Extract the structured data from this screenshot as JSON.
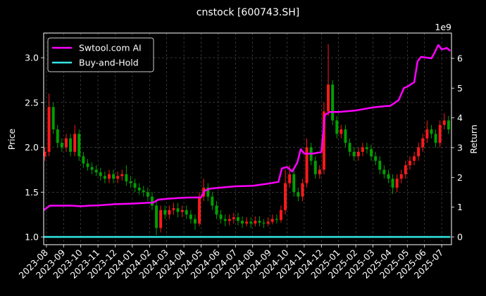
{
  "chart_data": {
    "type": "candlestick",
    "title": "cnstock [600743.SH]",
    "ylabel": "Price",
    "y2label": "Return",
    "y2_offset_label": "1e9",
    "up_color": "#ff1a1a",
    "down_color": "#00a000",
    "x": [
      -0.1,
      0.15,
      0.4,
      0.65,
      0.9,
      1.15,
      1.4,
      1.65,
      1.9,
      2.15,
      2.4,
      2.65,
      2.9,
      3.15,
      3.4,
      3.65,
      3.9,
      4.15,
      4.4,
      4.65,
      4.9,
      5.15,
      5.4,
      5.65,
      5.9,
      6.15,
      6.4,
      6.65,
      6.9,
      7.15,
      7.4,
      7.65,
      7.9,
      8.15,
      8.4,
      8.65,
      8.9,
      9.15,
      9.4,
      9.65,
      9.9,
      10.15,
      10.4,
      10.65,
      10.9,
      11.15,
      11.4,
      11.65,
      11.9,
      12.15,
      12.4,
      12.65,
      12.9,
      13.15,
      13.4,
      13.65,
      13.9,
      14.15,
      14.4,
      14.65,
      14.9,
      15.15,
      15.4,
      15.65,
      15.9,
      16.15,
      16.4,
      16.65,
      16.9,
      17.15,
      17.4,
      17.65,
      17.9,
      18.15,
      18.4,
      18.65,
      18.9,
      19.15,
      19.4,
      19.65,
      19.9,
      20.15,
      20.4,
      20.65,
      20.9,
      21.15,
      21.4,
      21.65,
      21.9,
      22.15,
      22.4,
      22.65,
      22.9,
      23.15,
      23.4
    ],
    "open": [
      1.9,
      1.95,
      2.45,
      2.2,
      2.05,
      2.0,
      2.1,
      1.95,
      2.15,
      1.9,
      1.82,
      1.78,
      1.75,
      1.72,
      1.68,
      1.65,
      1.7,
      1.65,
      1.68,
      1.7,
      1.62,
      1.6,
      1.55,
      1.52,
      1.5,
      1.45,
      1.35,
      1.1,
      1.3,
      1.25,
      1.3,
      1.32,
      1.28,
      1.3,
      1.25,
      1.2,
      1.15,
      1.45,
      1.55,
      1.45,
      1.35,
      1.25,
      1.2,
      1.18,
      1.2,
      1.22,
      1.18,
      1.15,
      1.17,
      1.15,
      1.18,
      1.16,
      1.15,
      1.17,
      1.2,
      1.19,
      1.3,
      1.6,
      1.7,
      1.5,
      1.45,
      1.6,
      2.0,
      1.85,
      1.7,
      1.75,
      2.4,
      2.7,
      2.3,
      2.15,
      2.2,
      2.05,
      1.95,
      1.9,
      1.95,
      2.0,
      1.98,
      1.9,
      1.85,
      1.75,
      1.7,
      1.65,
      1.55,
      1.65,
      1.7,
      1.8,
      1.85,
      1.9,
      2.0,
      2.1,
      2.2,
      2.15,
      2.05,
      2.25,
      2.3
    ],
    "high": [
      2.0,
      2.6,
      2.5,
      2.25,
      2.1,
      2.15,
      2.15,
      2.25,
      2.2,
      1.95,
      1.87,
      1.83,
      1.8,
      1.77,
      1.73,
      1.75,
      1.75,
      1.73,
      1.75,
      1.8,
      1.68,
      1.65,
      1.6,
      1.57,
      1.55,
      1.5,
      1.4,
      1.35,
      1.35,
      1.35,
      1.38,
      1.38,
      1.35,
      1.35,
      1.3,
      1.25,
      1.5,
      1.65,
      1.6,
      1.5,
      1.4,
      1.3,
      1.25,
      1.25,
      1.27,
      1.27,
      1.23,
      1.22,
      1.22,
      1.23,
      1.23,
      1.2,
      1.22,
      1.25,
      1.25,
      1.35,
      1.75,
      1.8,
      1.75,
      1.55,
      1.65,
      2.1,
      2.05,
      1.9,
      1.8,
      2.5,
      3.15,
      2.75,
      2.35,
      2.25,
      2.25,
      2.1,
      2.0,
      2.0,
      2.05,
      2.05,
      2.03,
      1.95,
      1.9,
      1.8,
      1.75,
      1.7,
      1.7,
      1.75,
      1.85,
      1.9,
      1.95,
      2.05,
      2.15,
      2.3,
      2.25,
      2.2,
      2.3,
      2.38,
      2.35
    ],
    "low": [
      1.85,
      1.9,
      2.15,
      2.0,
      1.95,
      1.95,
      1.9,
      1.9,
      1.85,
      1.77,
      1.74,
      1.7,
      1.68,
      1.63,
      1.6,
      1.6,
      1.6,
      1.6,
      1.63,
      1.57,
      1.55,
      1.5,
      1.47,
      1.45,
      1.4,
      1.3,
      1.02,
      1.05,
      1.2,
      1.2,
      1.25,
      1.22,
      1.22,
      1.2,
      1.15,
      1.08,
      1.12,
      1.4,
      1.4,
      1.3,
      1.2,
      1.15,
      1.12,
      1.13,
      1.15,
      1.13,
      1.1,
      1.12,
      1.1,
      1.12,
      1.12,
      1.1,
      1.12,
      1.14,
      1.15,
      1.16,
      1.25,
      1.55,
      1.45,
      1.4,
      1.4,
      1.55,
      1.8,
      1.65,
      1.65,
      1.7,
      2.35,
      2.25,
      2.1,
      2.1,
      2.0,
      1.9,
      1.85,
      1.85,
      1.9,
      1.93,
      1.85,
      1.8,
      1.7,
      1.65,
      1.6,
      1.48,
      1.5,
      1.6,
      1.65,
      1.75,
      1.8,
      1.85,
      1.95,
      2.05,
      2.1,
      2.0,
      2.0,
      2.2,
      2.15
    ],
    "close": [
      1.95,
      2.45,
      2.2,
      2.05,
      2.0,
      2.1,
      1.95,
      2.15,
      1.9,
      1.82,
      1.78,
      1.75,
      1.72,
      1.68,
      1.65,
      1.7,
      1.65,
      1.68,
      1.7,
      1.62,
      1.6,
      1.55,
      1.52,
      1.5,
      1.45,
      1.35,
      1.1,
      1.3,
      1.25,
      1.3,
      1.32,
      1.28,
      1.3,
      1.25,
      1.2,
      1.15,
      1.45,
      1.55,
      1.45,
      1.35,
      1.25,
      1.2,
      1.18,
      1.2,
      1.22,
      1.18,
      1.15,
      1.17,
      1.15,
      1.18,
      1.16,
      1.15,
      1.17,
      1.2,
      1.19,
      1.3,
      1.6,
      1.7,
      1.5,
      1.45,
      1.6,
      2.0,
      1.85,
      1.7,
      1.75,
      2.4,
      2.7,
      2.3,
      2.15,
      2.2,
      2.05,
      1.95,
      1.9,
      1.95,
      2.0,
      1.98,
      1.9,
      1.85,
      1.75,
      1.7,
      1.65,
      1.55,
      1.65,
      1.7,
      1.8,
      1.85,
      1.9,
      2.0,
      2.1,
      2.2,
      2.15,
      2.05,
      2.25,
      2.3,
      2.2
    ],
    "series": [
      {
        "name": "Swtool.com AI",
        "color": "#ff00ff",
        "axis": "y2",
        "x": [
          -0.15,
          0.2,
          1,
          1.5,
          2,
          2.5,
          3,
          4,
          5,
          6,
          6.2,
          6.5,
          7,
          7.5,
          8,
          9,
          9.2,
          9.5,
          10,
          11,
          12,
          13,
          13.5,
          13.7,
          14,
          14.3,
          14.6,
          14.8,
          15,
          15.5,
          16,
          16.2,
          16.5,
          17,
          18,
          19,
          19.8,
          20,
          20.5,
          20.8,
          21,
          21.4,
          21.6,
          21.8,
          22.4,
          22.6,
          22.8,
          23,
          23.3,
          23.5
        ],
        "values": [
          0.9,
          1.05,
          1.05,
          1.05,
          1.03,
          1.05,
          1.06,
          1.1,
          1.12,
          1.15,
          1.15,
          1.25,
          1.28,
          1.3,
          1.32,
          1.33,
          1.55,
          1.62,
          1.65,
          1.7,
          1.72,
          1.8,
          1.85,
          2.3,
          2.35,
          2.2,
          2.5,
          2.95,
          2.8,
          2.8,
          2.85,
          4.1,
          4.2,
          4.2,
          4.25,
          4.35,
          4.4,
          4.4,
          4.6,
          5.0,
          5.05,
          5.2,
          5.9,
          6.05,
          6.0,
          6.2,
          6.45,
          6.3,
          6.35,
          6.25
        ]
      },
      {
        "name": "Buy-and-Hold",
        "color": "#33e6e6",
        "axis": "y2",
        "x": [
          -0.15,
          23.5
        ],
        "values": [
          0,
          0
        ]
      }
    ],
    "xlim": [
      -0.16,
      23.57
    ],
    "xticks": [
      {
        "value": 0,
        "label": "2023-08"
      },
      {
        "value": 1,
        "label": "2023-09"
      },
      {
        "value": 2,
        "label": "2023-10"
      },
      {
        "value": 3,
        "label": "2023-11"
      },
      {
        "value": 4,
        "label": "2023-12"
      },
      {
        "value": 5,
        "label": "2024-01"
      },
      {
        "value": 6,
        "label": "2024-02"
      },
      {
        "value": 7,
        "label": "2024-03"
      },
      {
        "value": 8,
        "label": "2024-04"
      },
      {
        "value": 9,
        "label": "2024-05"
      },
      {
        "value": 10,
        "label": "2024-06"
      },
      {
        "value": 11,
        "label": "2024-07"
      },
      {
        "value": 12,
        "label": "2024-08"
      },
      {
        "value": 13,
        "label": "2024-09"
      },
      {
        "value": 14,
        "label": "2024-10"
      },
      {
        "value": 15,
        "label": "2024-11"
      },
      {
        "value": 16,
        "label": "2024-12"
      },
      {
        "value": 17,
        "label": "2025-01"
      },
      {
        "value": 18,
        "label": "2025-02"
      },
      {
        "value": 19,
        "label": "2025-03"
      },
      {
        "value": 20,
        "label": "2025-04"
      },
      {
        "value": 21,
        "label": "2025-05"
      },
      {
        "value": 22,
        "label": "2025-06"
      },
      {
        "value": 23,
        "label": "2025-07"
      }
    ],
    "ylim": [
      0.914,
      3.275
    ],
    "yticks": [
      {
        "value": 1,
        "label": "1.0"
      },
      {
        "value": 1.5,
        "label": "1.5"
      },
      {
        "value": 2,
        "label": "2.0"
      },
      {
        "value": 2.5,
        "label": "2.5"
      },
      {
        "value": 3,
        "label": "3.0"
      }
    ],
    "y2lim": [
      -0.26,
      6.85
    ],
    "y2ticks": [
      0,
      1,
      2,
      3,
      4,
      5,
      6
    ],
    "grid": true,
    "legend": "upper left"
  }
}
